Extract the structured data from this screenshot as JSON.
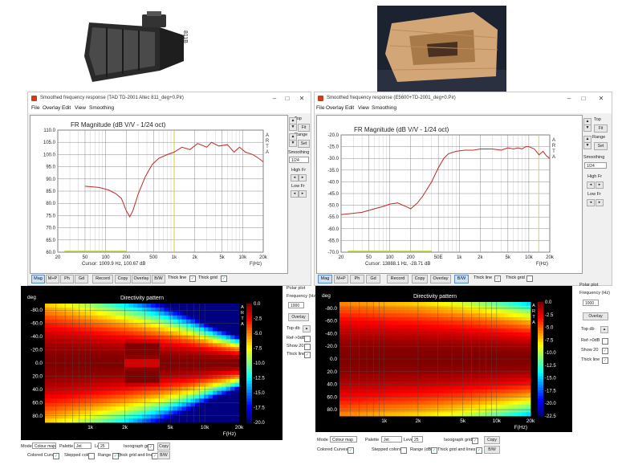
{
  "left_window": {
    "title": "Smoothed frequency response (TAD TD-2001 Altec 811_deg+0.Pir)",
    "menu": [
      "File",
      "Overlay",
      "Edit",
      "View",
      "Smoothing"
    ],
    "side": {
      "top": "Top",
      "fit": "Fit",
      "range": "Range",
      "set": "Set",
      "smoothing": "Smoothing",
      "smoothing_value": "1/24",
      "high_fr": "High Fr",
      "low_fr": "Low Fr"
    },
    "toolbar": {
      "mag": "Mag",
      "mph": "M+P",
      "ph": "Ph",
      "gd": "Gd",
      "record": "Record",
      "copy": "Copy",
      "overlay": "Overlay",
      "bw": "B/W",
      "thin_line": "Thick line",
      "thick_grid": "Thick grid"
    },
    "bottom": {
      "mode": "Mode",
      "mode_value": "Colour map",
      "palette": "Palette",
      "palette_value": "Jet",
      "levels": "Levels",
      "levels_value": "25",
      "isograph": "Isoograph grid",
      "copy": "Copy",
      "colored_curves": "Colored Curves",
      "stepped": "Stepped colors",
      "range_db": "Range (dB)",
      "thick_grid_lines": "Thick grid and lines",
      "bw": "B/W"
    },
    "polar": {
      "polar_plot": "Polar plot",
      "frequency": "Frequency (Hz)",
      "frequency_value": "1000",
      "overlay": "Overlay",
      "top_db": "Top db",
      "ref": "Ref->0dB",
      "show20": "Show 20",
      "thick_line": "Thick line"
    }
  },
  "right_window": {
    "title": "Smoothed frequency response (E5600+TD-2001_deg+0.Pir)",
    "menu": [
      "File",
      "Overlay",
      "Edit",
      "View",
      "Smoothing"
    ],
    "side": {
      "top": "Top",
      "fit": "Fit",
      "range": "Range",
      "set": "Set",
      "smoothing": "Smoothing",
      "smoothing_value": "1/24",
      "high_fr": "High Fr",
      "low_fr": "Low Fr"
    },
    "toolbar": {
      "mag": "Mag",
      "mph": "M+P",
      "ph": "Ph",
      "gd": "Gd",
      "record": "Record",
      "copy": "Copy",
      "overlay": "Overlay",
      "bw": "B/W",
      "thin_line": "Thick line",
      "thick_grid": "Thick grid"
    },
    "bottom": {
      "mode": "Mode",
      "mode_value": "Colour map",
      "palette": "Palette",
      "palette_value": "Jet",
      "levels": "Levels",
      "levels_value": "25",
      "isograph": "Isoograph grid",
      "copy": "Copy",
      "colored_curves": "Colored Curves",
      "stepped": "Stepped colors",
      "range_db": "Range (dB)",
      "thick_grid_lines": "Thick grid and lines",
      "bw": "B/W"
    },
    "polar": {
      "polar_plot": "Polar plot",
      "frequency": "Frequency (Hz)",
      "frequency_value": "1000",
      "overlay": "Overlay",
      "top_db": "Top db",
      "ref": "Ref->0dB",
      "show20": "Show 20",
      "thick_line": "Thick line"
    }
  },
  "chart_data": [
    {
      "type": "line",
      "title": "FR Magnitude (dB V/V - 1/24 oct)",
      "brand": "ARTA",
      "xlabel": "F(Hz)",
      "xscale": "log",
      "xlim": [
        20,
        20000
      ],
      "ylim": [
        60,
        110
      ],
      "x_ticks": [
        "20",
        "50",
        "100",
        "200",
        "500",
        "1k",
        "2k",
        "5k",
        "10k",
        "20k"
      ],
      "x_tick_values": [
        20,
        50,
        100,
        200,
        500,
        1000,
        2000,
        5000,
        10000,
        20000
      ],
      "y_ticks": [
        "110.0",
        "105.0",
        "100.0",
        "95.0",
        "90.0",
        "85.0",
        "80.0",
        "75.0",
        "70.0",
        "65.0",
        "60.0"
      ],
      "y_tick_values": [
        110,
        105,
        100,
        95,
        90,
        85,
        80,
        75,
        70,
        65,
        60
      ],
      "cursor_hz": 1000,
      "cursor_text": "Cursor: 1009.9 Hz, 100.67 dB",
      "series": [
        {
          "color": "#c0282a",
          "x": [
            50,
            80,
            110,
            140,
            170,
            200,
            225,
            250,
            300,
            380,
            480,
            600,
            800,
            1000,
            1300,
            1700,
            2200,
            3000,
            3500,
            4500,
            6000,
            7500,
            9000,
            11000,
            14000,
            16000,
            18000,
            20000
          ],
          "y": [
            87,
            86.5,
            85.5,
            84,
            82,
            77,
            74.5,
            77,
            84,
            91,
            96,
            98.5,
            100,
            101,
            103,
            102,
            104.5,
            103,
            105,
            103.5,
            104,
            101,
            103,
            101,
            100,
            99,
            98,
            97
          ]
        }
      ],
      "green_segment_x": [
        25,
        200
      ]
    },
    {
      "type": "line",
      "title": "FR Magnitude (dB V/V - 1/24 oct)",
      "brand": "ARTA",
      "xlabel": "F(Hz)",
      "xscale": "log",
      "xlim": [
        20,
        20000
      ],
      "ylim": [
        -70,
        -20
      ],
      "x_ticks": [
        "20",
        "50",
        "100",
        "200",
        "50E",
        "1k",
        "2k",
        "5k",
        "10k",
        "20k"
      ],
      "x_tick_values": [
        20,
        50,
        100,
        200,
        500,
        1000,
        2000,
        5000,
        10000,
        20000
      ],
      "y_ticks": [
        "-20.0",
        "-25.0",
        "-30.0",
        "-35.0",
        "-40.0",
        "-45.0",
        "-50.0",
        "-55.0",
        "-60.0",
        "-65.0",
        "-70.0"
      ],
      "y_tick_values": [
        -20,
        -25,
        -30,
        -35,
        -40,
        -45,
        -50,
        -55,
        -60,
        -65,
        -70
      ],
      "cursor_hz": 13888,
      "cursor_text": "Cursor: 13888.1 Hz, -28.71 dB",
      "series": [
        {
          "color": "#c0282a",
          "x": [
            20,
            40,
            60,
            80,
            100,
            130,
            170,
            200,
            250,
            300,
            400,
            500,
            600,
            700,
            900,
            1200,
            1600,
            2000,
            3000,
            4000,
            5000,
            6000,
            7000,
            8000,
            9000,
            10000,
            12000,
            14000,
            16000,
            18000,
            20000
          ],
          "y": [
            -54,
            -53,
            -51.5,
            -50.5,
            -49.5,
            -49,
            -50.5,
            -51.5,
            -49,
            -46,
            -40,
            -34,
            -30,
            -28,
            -27,
            -26.5,
            -26.5,
            -26,
            -26,
            -26.5,
            -25.5,
            -26,
            -25.5,
            -26,
            -25,
            -25,
            -26,
            -28.5,
            -27,
            -29,
            -30
          ]
        }
      ],
      "green_segment_x": [
        25,
        400
      ]
    },
    {
      "type": "heatmap",
      "title": "Directivity pattern",
      "brand": "ARTA",
      "xlabel": "F(Hz)",
      "ylabel": "deg",
      "xscale": "log",
      "xlim": [
        400,
        20000
      ],
      "ylim": [
        -90,
        90
      ],
      "x_ticks": [
        "1k",
        "2k",
        "5k",
        "10k",
        "20k"
      ],
      "x_tick_values": [
        1000,
        2000,
        5000,
        10000,
        20000
      ],
      "y_ticks": [
        "-80.0",
        "-60.0",
        "-40.0",
        "-20.0",
        "0.0",
        "20.0",
        "40.0",
        "60.0",
        "80.0"
      ],
      "y_tick_values": [
        -80,
        -60,
        -40,
        -20,
        0,
        20,
        40,
        60,
        80
      ],
      "colorbar_labels": [
        "0.0",
        "-2.5",
        "-5.0",
        "-7.5",
        "-10.0",
        "-12.5",
        "-15.0",
        "-17.5",
        "-20.0"
      ],
      "colorbar_values": [
        0,
        -2.5,
        -5,
        -7.5,
        -10,
        -12.5,
        -15,
        -17.5,
        -20
      ],
      "beamwidth_deg": [
        {
          "hz": 400,
          "deg": 85
        },
        {
          "hz": 1000,
          "deg": 70
        },
        {
          "hz": 2000,
          "deg": 60
        },
        {
          "hz": 4000,
          "deg": 50
        },
        {
          "hz": 8000,
          "deg": 38
        },
        {
          "hz": 12000,
          "deg": 30
        },
        {
          "hz": 20000,
          "deg": 22
        }
      ],
      "lobes_deg": [
        -23,
        23
      ],
      "lobes_hz": [
        2000,
        4000
      ]
    },
    {
      "type": "heatmap",
      "title": "Directivity pattern",
      "brand": "ARTA",
      "xlabel": "F(Hz)",
      "ylabel": "deg",
      "xscale": "log",
      "xlim": [
        400,
        20000
      ],
      "ylim": [
        -90,
        90
      ],
      "x_ticks": [
        "1k",
        "2k",
        "5k",
        "10k",
        "20k"
      ],
      "x_tick_values": [
        1000,
        2000,
        5000,
        10000,
        20000
      ],
      "y_ticks": [
        "-80.0",
        "-60.0",
        "-40.0",
        "-20.0",
        "0.0",
        "20.0",
        "40.0",
        "60.0",
        "80.0"
      ],
      "y_tick_values": [
        -80,
        -60,
        -40,
        -20,
        0,
        20,
        40,
        60,
        80
      ],
      "colorbar_labels": [
        "0.0",
        "-2.5",
        "-5.0",
        "-7.5",
        "-10.0",
        "-12.5",
        "-15.0",
        "-17.5",
        "-20.0",
        "-22.5"
      ],
      "colorbar_values": [
        0,
        -2.5,
        -5,
        -7.5,
        -10,
        -12.5,
        -15,
        -17.5,
        -20,
        -22.5
      ],
      "beamwidth_deg": [
        {
          "hz": 400,
          "deg": 90
        },
        {
          "hz": 1000,
          "deg": 82
        },
        {
          "hz": 2000,
          "deg": 78
        },
        {
          "hz": 5000,
          "deg": 70
        },
        {
          "hz": 10000,
          "deg": 62
        },
        {
          "hz": 20000,
          "deg": 55
        }
      ]
    }
  ],
  "colors": {
    "curve": "#c0282a",
    "cursor": "#d8d030",
    "low_segment": "#b8d020",
    "plot_bg": "#ffffff",
    "grid": "#9a9a9a"
  }
}
